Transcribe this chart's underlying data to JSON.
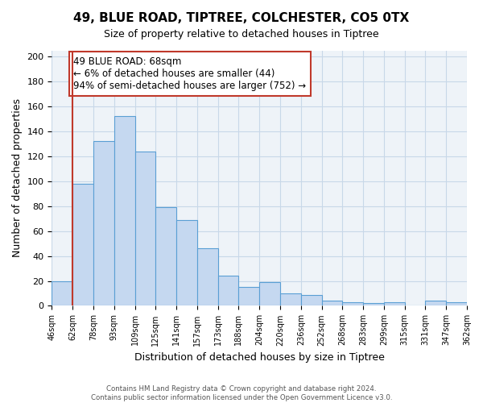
{
  "title_line1": "49, BLUE ROAD, TIPTREE, COLCHESTER, CO5 0TX",
  "title_line2": "Size of property relative to detached houses in Tiptree",
  "xlabel": "Distribution of detached houses by size in Tiptree",
  "ylabel": "Number of detached properties",
  "bar_labels": [
    "46sqm",
    "62sqm",
    "78sqm",
    "93sqm",
    "109sqm",
    "125sqm",
    "141sqm",
    "157sqm",
    "173sqm",
    "188sqm",
    "204sqm",
    "220sqm",
    "236sqm",
    "252sqm",
    "268sqm",
    "283sqm",
    "299sqm",
    "315sqm",
    "331sqm",
    "347sqm",
    "362sqm"
  ],
  "bar_values": [
    20,
    98,
    132,
    152,
    124,
    79,
    69,
    46,
    24,
    15,
    19,
    10,
    9,
    4,
    3,
    2,
    3,
    0,
    4,
    3
  ],
  "bar_color": "#c5d8f0",
  "bar_edge_color": "#5a9fd4",
  "vline_x": 1,
  "vline_color": "#c0392b",
  "annotation_text": "49 BLUE ROAD: 68sqm\n← 6% of detached houses are smaller (44)\n94% of semi-detached houses are larger (752) →",
  "annotation_box_edge": "#c0392b",
  "annotation_fontsize": 8.5,
  "ylim": [
    0,
    205
  ],
  "yticks": [
    0,
    20,
    40,
    60,
    80,
    100,
    120,
    140,
    160,
    180,
    200
  ],
  "grid_color": "#c8d8e8",
  "bg_color": "#eef3f8",
  "footer_line1": "Contains HM Land Registry data © Crown copyright and database right 2024.",
  "footer_line2": "Contains public sector information licensed under the Open Government Licence v3.0."
}
